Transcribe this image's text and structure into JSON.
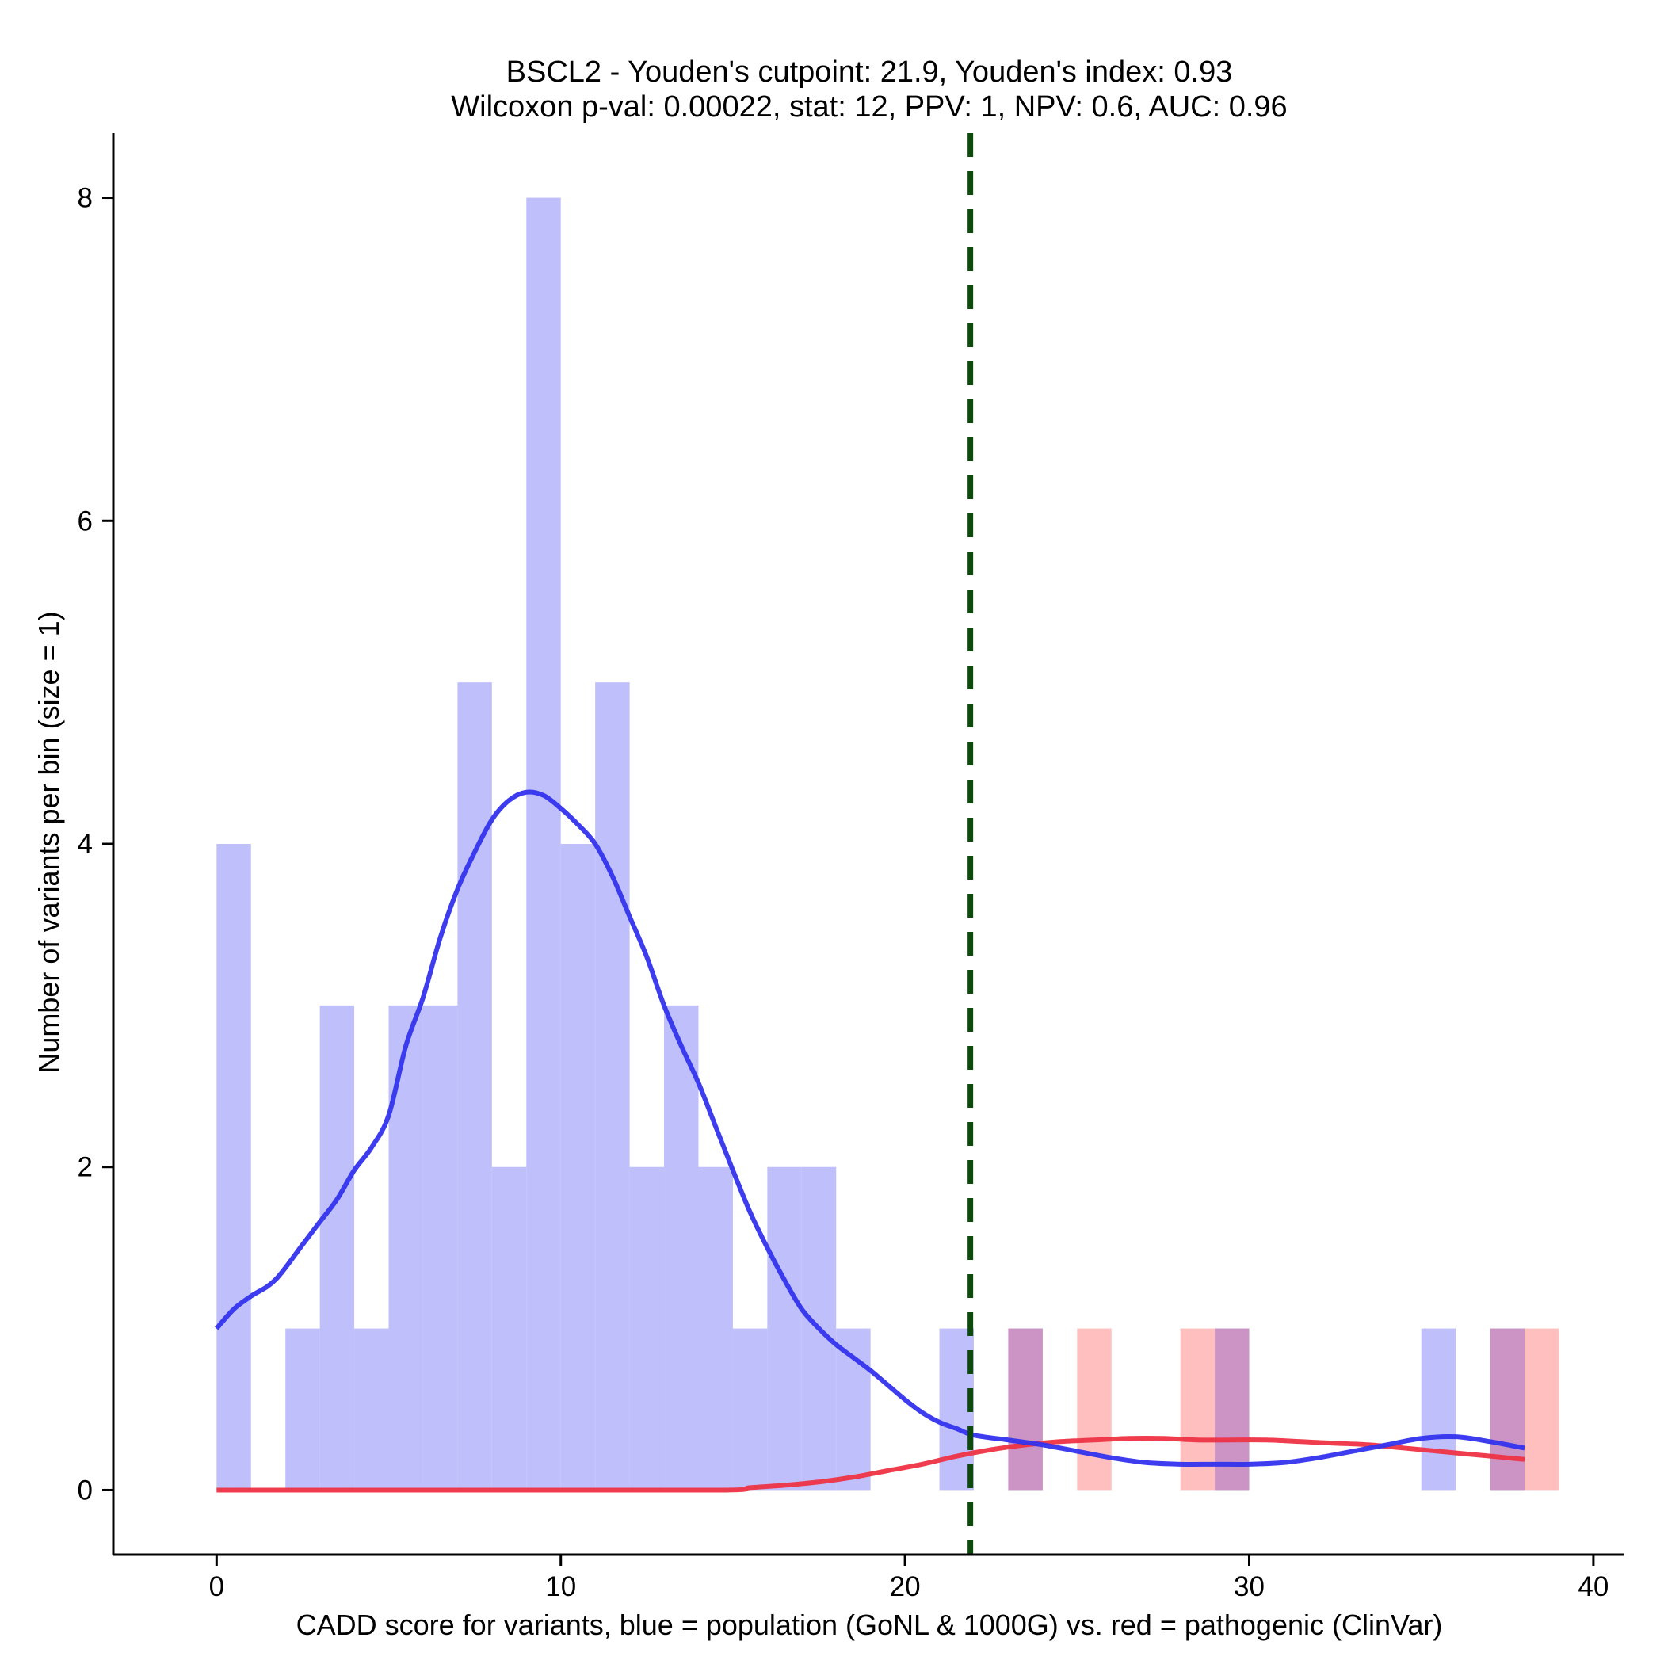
{
  "chart_data": {
    "type": "bar",
    "title_line1": "BSCL2 - Youden's cutpoint: 21.9, Youden's index: 0.93",
    "title_line2": "Wilcoxon p-val: 0.00022, stat: 12, PPV: 1, NPV: 0.6, AUC: 0.96",
    "xlabel": "CADD score for variants, blue = population (GoNL & 1000G) vs. red = pathogenic (ClinVar)",
    "ylabel": "Number of variants per bin (size = 1)",
    "xlim": [
      -3,
      40.9
    ],
    "ylim": [
      -0.4,
      8.4
    ],
    "x_ticks": [
      0,
      10,
      20,
      30,
      40
    ],
    "y_ticks": [
      0,
      2,
      4,
      6,
      8
    ],
    "bin_size": 1,
    "cutpoint": 21.9,
    "series": [
      {
        "name": "population (GoNL & 1000G)",
        "color": "#bfbffb",
        "bins": [
          {
            "start": 0,
            "count": 4
          },
          {
            "start": 2,
            "count": 1
          },
          {
            "start": 3,
            "count": 3
          },
          {
            "start": 4,
            "count": 1
          },
          {
            "start": 5,
            "count": 3
          },
          {
            "start": 6,
            "count": 3
          },
          {
            "start": 7,
            "count": 5
          },
          {
            "start": 8,
            "count": 2
          },
          {
            "start": 9,
            "count": 8
          },
          {
            "start": 10,
            "count": 4
          },
          {
            "start": 11,
            "count": 5
          },
          {
            "start": 12,
            "count": 2
          },
          {
            "start": 13,
            "count": 3
          },
          {
            "start": 14,
            "count": 2
          },
          {
            "start": 15,
            "count": 1
          },
          {
            "start": 16,
            "count": 2
          },
          {
            "start": 17,
            "count": 2
          },
          {
            "start": 18,
            "count": 1
          },
          {
            "start": 21,
            "count": 1
          },
          {
            "start": 23,
            "count": 1
          },
          {
            "start": 29,
            "count": 1
          },
          {
            "start": 35,
            "count": 1
          },
          {
            "start": 37,
            "count": 1
          }
        ]
      },
      {
        "name": "pathogenic (ClinVar)",
        "color": "#ffbfbf",
        "bins": [
          {
            "start": 23,
            "count": 1
          },
          {
            "start": 25,
            "count": 1
          },
          {
            "start": 28,
            "count": 1
          },
          {
            "start": 29,
            "count": 1
          },
          {
            "start": 37,
            "count": 1
          },
          {
            "start": 38,
            "count": 1
          }
        ]
      }
    ],
    "overlap_color": "#cc93c5",
    "density_lines": [
      {
        "name": "population density",
        "color": "#3333ee",
        "points": [
          [
            0,
            1.0
          ],
          [
            0.5,
            1.12
          ],
          [
            1,
            1.2
          ],
          [
            1.7,
            1.3
          ],
          [
            2.5,
            1.52
          ],
          [
            3,
            1.66
          ],
          [
            3.5,
            1.8
          ],
          [
            4,
            1.98
          ],
          [
            4.5,
            2.12
          ],
          [
            5,
            2.32
          ],
          [
            5.5,
            2.75
          ],
          [
            6,
            3.05
          ],
          [
            6.5,
            3.42
          ],
          [
            7,
            3.72
          ],
          [
            7.5,
            3.95
          ],
          [
            8,
            4.15
          ],
          [
            8.5,
            4.27
          ],
          [
            9,
            4.32
          ],
          [
            9.5,
            4.3
          ],
          [
            10,
            4.22
          ],
          [
            10.5,
            4.12
          ],
          [
            11,
            4.0
          ],
          [
            11.5,
            3.8
          ],
          [
            12,
            3.55
          ],
          [
            12.5,
            3.3
          ],
          [
            13,
            3.0
          ],
          [
            13.5,
            2.75
          ],
          [
            14,
            2.52
          ],
          [
            14.5,
            2.25
          ],
          [
            15,
            1.98
          ],
          [
            15.5,
            1.72
          ],
          [
            16,
            1.5
          ],
          [
            16.5,
            1.3
          ],
          [
            17,
            1.12
          ],
          [
            17.5,
            1.0
          ],
          [
            18,
            0.9
          ],
          [
            18.5,
            0.82
          ],
          [
            19,
            0.74
          ],
          [
            19.5,
            0.65
          ],
          [
            20,
            0.56
          ],
          [
            20.5,
            0.48
          ],
          [
            21,
            0.42
          ],
          [
            21.5,
            0.38
          ],
          [
            22,
            0.34
          ],
          [
            23,
            0.31
          ],
          [
            24,
            0.28
          ],
          [
            25,
            0.24
          ],
          [
            26,
            0.2
          ],
          [
            27,
            0.17
          ],
          [
            28,
            0.16
          ],
          [
            29,
            0.16
          ],
          [
            30,
            0.16
          ],
          [
            31,
            0.17
          ],
          [
            32,
            0.2
          ],
          [
            33,
            0.24
          ],
          [
            34,
            0.28
          ],
          [
            35,
            0.32
          ],
          [
            36,
            0.33
          ],
          [
            37,
            0.3
          ],
          [
            38,
            0.26
          ]
        ]
      },
      {
        "name": "pathogenic density",
        "color": "#ee3344",
        "points": [
          [
            0,
            0
          ],
          [
            2,
            0
          ],
          [
            5,
            0
          ],
          [
            10,
            0
          ],
          [
            14.8,
            0
          ],
          [
            15.5,
            0.015
          ],
          [
            16.5,
            0.03
          ],
          [
            17.5,
            0.05
          ],
          [
            18.5,
            0.08
          ],
          [
            19.5,
            0.12
          ],
          [
            20.5,
            0.16
          ],
          [
            21.5,
            0.21
          ],
          [
            22.5,
            0.25
          ],
          [
            23.5,
            0.28
          ],
          [
            24.5,
            0.3
          ],
          [
            25.5,
            0.31
          ],
          [
            26.5,
            0.32
          ],
          [
            27.5,
            0.32
          ],
          [
            28.5,
            0.31
          ],
          [
            29.5,
            0.31
          ],
          [
            30.5,
            0.31
          ],
          [
            31.5,
            0.3
          ],
          [
            32.5,
            0.29
          ],
          [
            33.5,
            0.28
          ],
          [
            34.5,
            0.26
          ],
          [
            35.5,
            0.24
          ],
          [
            36.5,
            0.22
          ],
          [
            37.5,
            0.2
          ],
          [
            38,
            0.19
          ]
        ]
      }
    ],
    "cutpoint_color": "#0c4b0c"
  }
}
